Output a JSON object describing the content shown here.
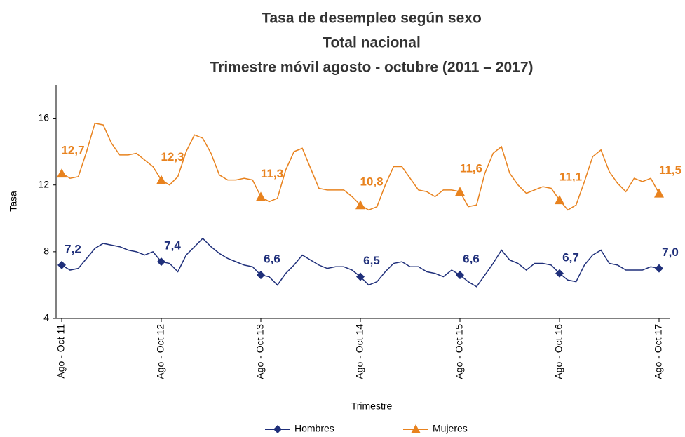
{
  "chart_data": {
    "type": "line",
    "title": "Tasa de desempleo según sexo",
    "subtitle": [
      "Total nacional",
      "Trimestre móvil agosto - octubre (2011 – 2017)"
    ],
    "x_label": "Trimestre",
    "y_label": "Tasa",
    "categories": [
      "Ago - Oct 11",
      null,
      null,
      null,
      null,
      null,
      null,
      null,
      null,
      null,
      null,
      null,
      "Ago - Oct 12",
      null,
      null,
      null,
      null,
      null,
      null,
      null,
      null,
      null,
      null,
      null,
      "Ago - Oct 13",
      null,
      null,
      null,
      null,
      null,
      null,
      null,
      null,
      null,
      null,
      null,
      "Ago - Oct 14",
      null,
      null,
      null,
      null,
      null,
      null,
      null,
      null,
      null,
      null,
      null,
      "Ago - Oct 15",
      null,
      null,
      null,
      null,
      null,
      null,
      null,
      null,
      null,
      null,
      null,
      "Ago - Oct 16",
      null,
      null,
      null,
      null,
      null,
      null,
      null,
      null,
      null,
      null,
      null,
      "Ago - Oct 17"
    ],
    "ylim": [
      4,
      18
    ],
    "yticks": [
      4,
      8,
      12,
      16
    ],
    "series": [
      {
        "name": "Hombres",
        "color": "#1f2f7a",
        "marker": "diamond",
        "values": [
          7.2,
          6.9,
          7.0,
          7.6,
          8.2,
          8.5,
          8.4,
          8.3,
          8.1,
          8.0,
          7.8,
          8.0,
          7.4,
          7.3,
          6.8,
          7.8,
          8.3,
          8.8,
          8.3,
          7.9,
          7.6,
          7.4,
          7.2,
          7.1,
          6.6,
          6.5,
          6.0,
          6.7,
          7.2,
          7.8,
          7.5,
          7.2,
          7.0,
          7.1,
          7.1,
          6.9,
          6.5,
          6.0,
          6.2,
          6.8,
          7.3,
          7.4,
          7.1,
          7.1,
          6.8,
          6.7,
          6.5,
          6.9,
          6.6,
          6.2,
          5.9,
          6.6,
          7.3,
          8.1,
          7.5,
          7.3,
          6.9,
          7.3,
          7.3,
          7.2,
          6.7,
          6.3,
          6.2,
          7.2,
          7.8,
          8.1,
          7.3,
          7.2,
          6.9,
          6.9,
          6.9,
          7.1,
          7.0
        ],
        "value_labels": [
          "7,2",
          null,
          null,
          null,
          null,
          null,
          null,
          null,
          null,
          null,
          null,
          null,
          "7,4",
          null,
          null,
          null,
          null,
          null,
          null,
          null,
          null,
          null,
          null,
          null,
          "6,6",
          null,
          null,
          null,
          null,
          null,
          null,
          null,
          null,
          null,
          null,
          null,
          "6,5",
          null,
          null,
          null,
          null,
          null,
          null,
          null,
          null,
          null,
          null,
          null,
          "6,6",
          null,
          null,
          null,
          null,
          null,
          null,
          null,
          null,
          null,
          null,
          null,
          "6,7",
          null,
          null,
          null,
          null,
          null,
          null,
          null,
          null,
          null,
          null,
          null,
          "7,0"
        ]
      },
      {
        "name": "Mujeres",
        "color": "#e8821e",
        "marker": "triangle",
        "values": [
          12.7,
          12.4,
          12.5,
          14.0,
          15.7,
          15.6,
          14.5,
          13.8,
          13.8,
          13.9,
          13.5,
          13.1,
          12.3,
          12.0,
          12.5,
          14.0,
          15.0,
          14.8,
          13.9,
          12.6,
          12.3,
          12.3,
          12.4,
          12.3,
          11.3,
          11.0,
          11.2,
          12.9,
          14.0,
          14.2,
          13.0,
          11.8,
          11.7,
          11.7,
          11.7,
          11.3,
          10.8,
          10.5,
          10.7,
          12.0,
          13.1,
          13.1,
          12.4,
          11.7,
          11.6,
          11.3,
          11.7,
          11.7,
          11.6,
          10.7,
          10.8,
          12.7,
          13.9,
          14.3,
          12.7,
          12.0,
          11.5,
          11.7,
          11.9,
          11.8,
          11.1,
          10.5,
          10.8,
          12.2,
          13.7,
          14.1,
          12.8,
          12.1,
          11.6,
          12.4,
          12.2,
          12.4,
          11.5
        ],
        "value_labels": [
          "12,7",
          null,
          null,
          null,
          null,
          null,
          null,
          null,
          null,
          null,
          null,
          null,
          "12,3",
          null,
          null,
          null,
          null,
          null,
          null,
          null,
          null,
          null,
          null,
          null,
          "11,3",
          null,
          null,
          null,
          null,
          null,
          null,
          null,
          null,
          null,
          null,
          null,
          "10,8",
          null,
          null,
          null,
          null,
          null,
          null,
          null,
          null,
          null,
          null,
          null,
          "11,6",
          null,
          null,
          null,
          null,
          null,
          null,
          null,
          null,
          null,
          null,
          null,
          "11,1",
          null,
          null,
          null,
          null,
          null,
          null,
          null,
          null,
          null,
          null,
          null,
          "11,5"
        ]
      }
    ]
  }
}
